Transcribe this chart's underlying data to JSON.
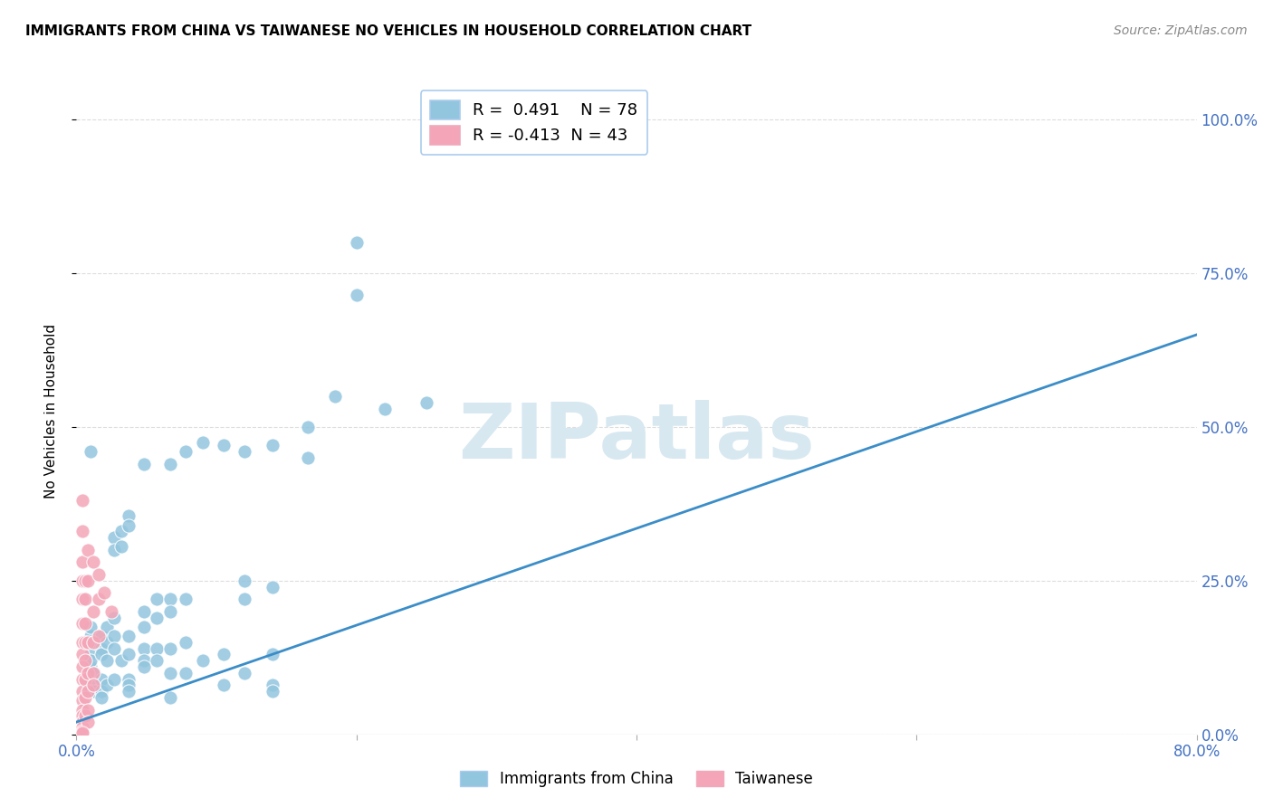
{
  "title": "IMMIGRANTS FROM CHINA VS TAIWANESE NO VEHICLES IN HOUSEHOLD CORRELATION CHART",
  "source": "Source: ZipAtlas.com",
  "ylabel": "No Vehicles in Household",
  "yticks": [
    "0.0%",
    "25.0%",
    "50.0%",
    "75.0%",
    "100.0%"
  ],
  "ytick_vals": [
    0.0,
    0.25,
    0.5,
    0.75,
    1.0
  ],
  "legend_blue_r": "0.491",
  "legend_blue_n": "78",
  "legend_pink_r": "-0.413",
  "legend_pink_n": "43",
  "legend_label_blue": "Immigrants from China",
  "legend_label_pink": "Taiwanese",
  "blue_color": "#92C5DE",
  "pink_color": "#F4A6B8",
  "line_color": "#3B8DC8",
  "watermark_color": "#D8E8F0",
  "blue_points": [
    [
      0.01,
      0.13
    ],
    [
      0.01,
      0.16
    ],
    [
      0.01,
      0.175
    ],
    [
      0.01,
      0.11
    ],
    [
      0.01,
      0.09
    ],
    [
      0.01,
      0.07
    ],
    [
      0.01,
      0.12
    ],
    [
      0.013,
      0.15
    ],
    [
      0.013,
      0.1
    ],
    [
      0.013,
      0.07
    ],
    [
      0.018,
      0.16
    ],
    [
      0.018,
      0.14
    ],
    [
      0.018,
      0.13
    ],
    [
      0.018,
      0.09
    ],
    [
      0.018,
      0.07
    ],
    [
      0.018,
      0.06
    ],
    [
      0.022,
      0.175
    ],
    [
      0.022,
      0.15
    ],
    [
      0.022,
      0.12
    ],
    [
      0.022,
      0.08
    ],
    [
      0.027,
      0.19
    ],
    [
      0.027,
      0.16
    ],
    [
      0.027,
      0.14
    ],
    [
      0.027,
      0.32
    ],
    [
      0.027,
      0.3
    ],
    [
      0.027,
      0.09
    ],
    [
      0.032,
      0.33
    ],
    [
      0.032,
      0.305
    ],
    [
      0.032,
      0.12
    ],
    [
      0.037,
      0.355
    ],
    [
      0.037,
      0.34
    ],
    [
      0.037,
      0.16
    ],
    [
      0.037,
      0.13
    ],
    [
      0.037,
      0.09
    ],
    [
      0.037,
      0.08
    ],
    [
      0.037,
      0.07
    ],
    [
      0.048,
      0.44
    ],
    [
      0.048,
      0.2
    ],
    [
      0.048,
      0.175
    ],
    [
      0.048,
      0.14
    ],
    [
      0.048,
      0.12
    ],
    [
      0.048,
      0.11
    ],
    [
      0.057,
      0.22
    ],
    [
      0.057,
      0.19
    ],
    [
      0.057,
      0.14
    ],
    [
      0.057,
      0.12
    ],
    [
      0.067,
      0.44
    ],
    [
      0.067,
      0.22
    ],
    [
      0.067,
      0.2
    ],
    [
      0.067,
      0.14
    ],
    [
      0.067,
      0.1
    ],
    [
      0.067,
      0.06
    ],
    [
      0.078,
      0.46
    ],
    [
      0.078,
      0.22
    ],
    [
      0.078,
      0.15
    ],
    [
      0.078,
      0.1
    ],
    [
      0.09,
      0.475
    ],
    [
      0.09,
      0.12
    ],
    [
      0.105,
      0.47
    ],
    [
      0.105,
      0.13
    ],
    [
      0.105,
      0.08
    ],
    [
      0.12,
      0.46
    ],
    [
      0.12,
      0.25
    ],
    [
      0.12,
      0.22
    ],
    [
      0.12,
      0.1
    ],
    [
      0.14,
      0.47
    ],
    [
      0.14,
      0.24
    ],
    [
      0.14,
      0.13
    ],
    [
      0.14,
      0.08
    ],
    [
      0.14,
      0.07
    ],
    [
      0.165,
      0.5
    ],
    [
      0.165,
      0.45
    ],
    [
      0.185,
      0.55
    ],
    [
      0.2,
      0.8
    ],
    [
      0.2,
      0.715
    ],
    [
      0.22,
      0.53
    ],
    [
      0.25,
      0.54
    ],
    [
      0.01,
      0.46
    ]
  ],
  "pink_points": [
    [
      0.004,
      0.38
    ],
    [
      0.004,
      0.33
    ],
    [
      0.004,
      0.28
    ],
    [
      0.004,
      0.25
    ],
    [
      0.004,
      0.22
    ],
    [
      0.004,
      0.18
    ],
    [
      0.004,
      0.15
    ],
    [
      0.004,
      0.13
    ],
    [
      0.004,
      0.11
    ],
    [
      0.004,
      0.09
    ],
    [
      0.004,
      0.07
    ],
    [
      0.004,
      0.055
    ],
    [
      0.004,
      0.04
    ],
    [
      0.004,
      0.03
    ],
    [
      0.004,
      0.02
    ],
    [
      0.004,
      0.012
    ],
    [
      0.004,
      0.006
    ],
    [
      0.006,
      0.25
    ],
    [
      0.006,
      0.22
    ],
    [
      0.006,
      0.18
    ],
    [
      0.006,
      0.15
    ],
    [
      0.006,
      0.12
    ],
    [
      0.006,
      0.09
    ],
    [
      0.006,
      0.06
    ],
    [
      0.006,
      0.03
    ],
    [
      0.008,
      0.3
    ],
    [
      0.008,
      0.25
    ],
    [
      0.008,
      0.15
    ],
    [
      0.008,
      0.1
    ],
    [
      0.008,
      0.07
    ],
    [
      0.008,
      0.04
    ],
    [
      0.008,
      0.02
    ],
    [
      0.012,
      0.28
    ],
    [
      0.012,
      0.2
    ],
    [
      0.012,
      0.15
    ],
    [
      0.012,
      0.1
    ],
    [
      0.012,
      0.08
    ],
    [
      0.016,
      0.26
    ],
    [
      0.016,
      0.22
    ],
    [
      0.016,
      0.16
    ],
    [
      0.02,
      0.23
    ],
    [
      0.025,
      0.2
    ],
    [
      0.004,
      0.003
    ]
  ],
  "trendline_x": [
    0.0,
    0.8
  ],
  "trendline_y": [
    0.02,
    0.65
  ],
  "xmin": 0.0,
  "xmax": 0.8,
  "ymin": 0.0,
  "ymax": 1.05,
  "grid_color": "#DDDDDD",
  "background_color": "#ffffff",
  "tick_color": "#4472C4",
  "title_fontsize": 11,
  "axis_fontsize": 12,
  "legend_fontsize": 13
}
